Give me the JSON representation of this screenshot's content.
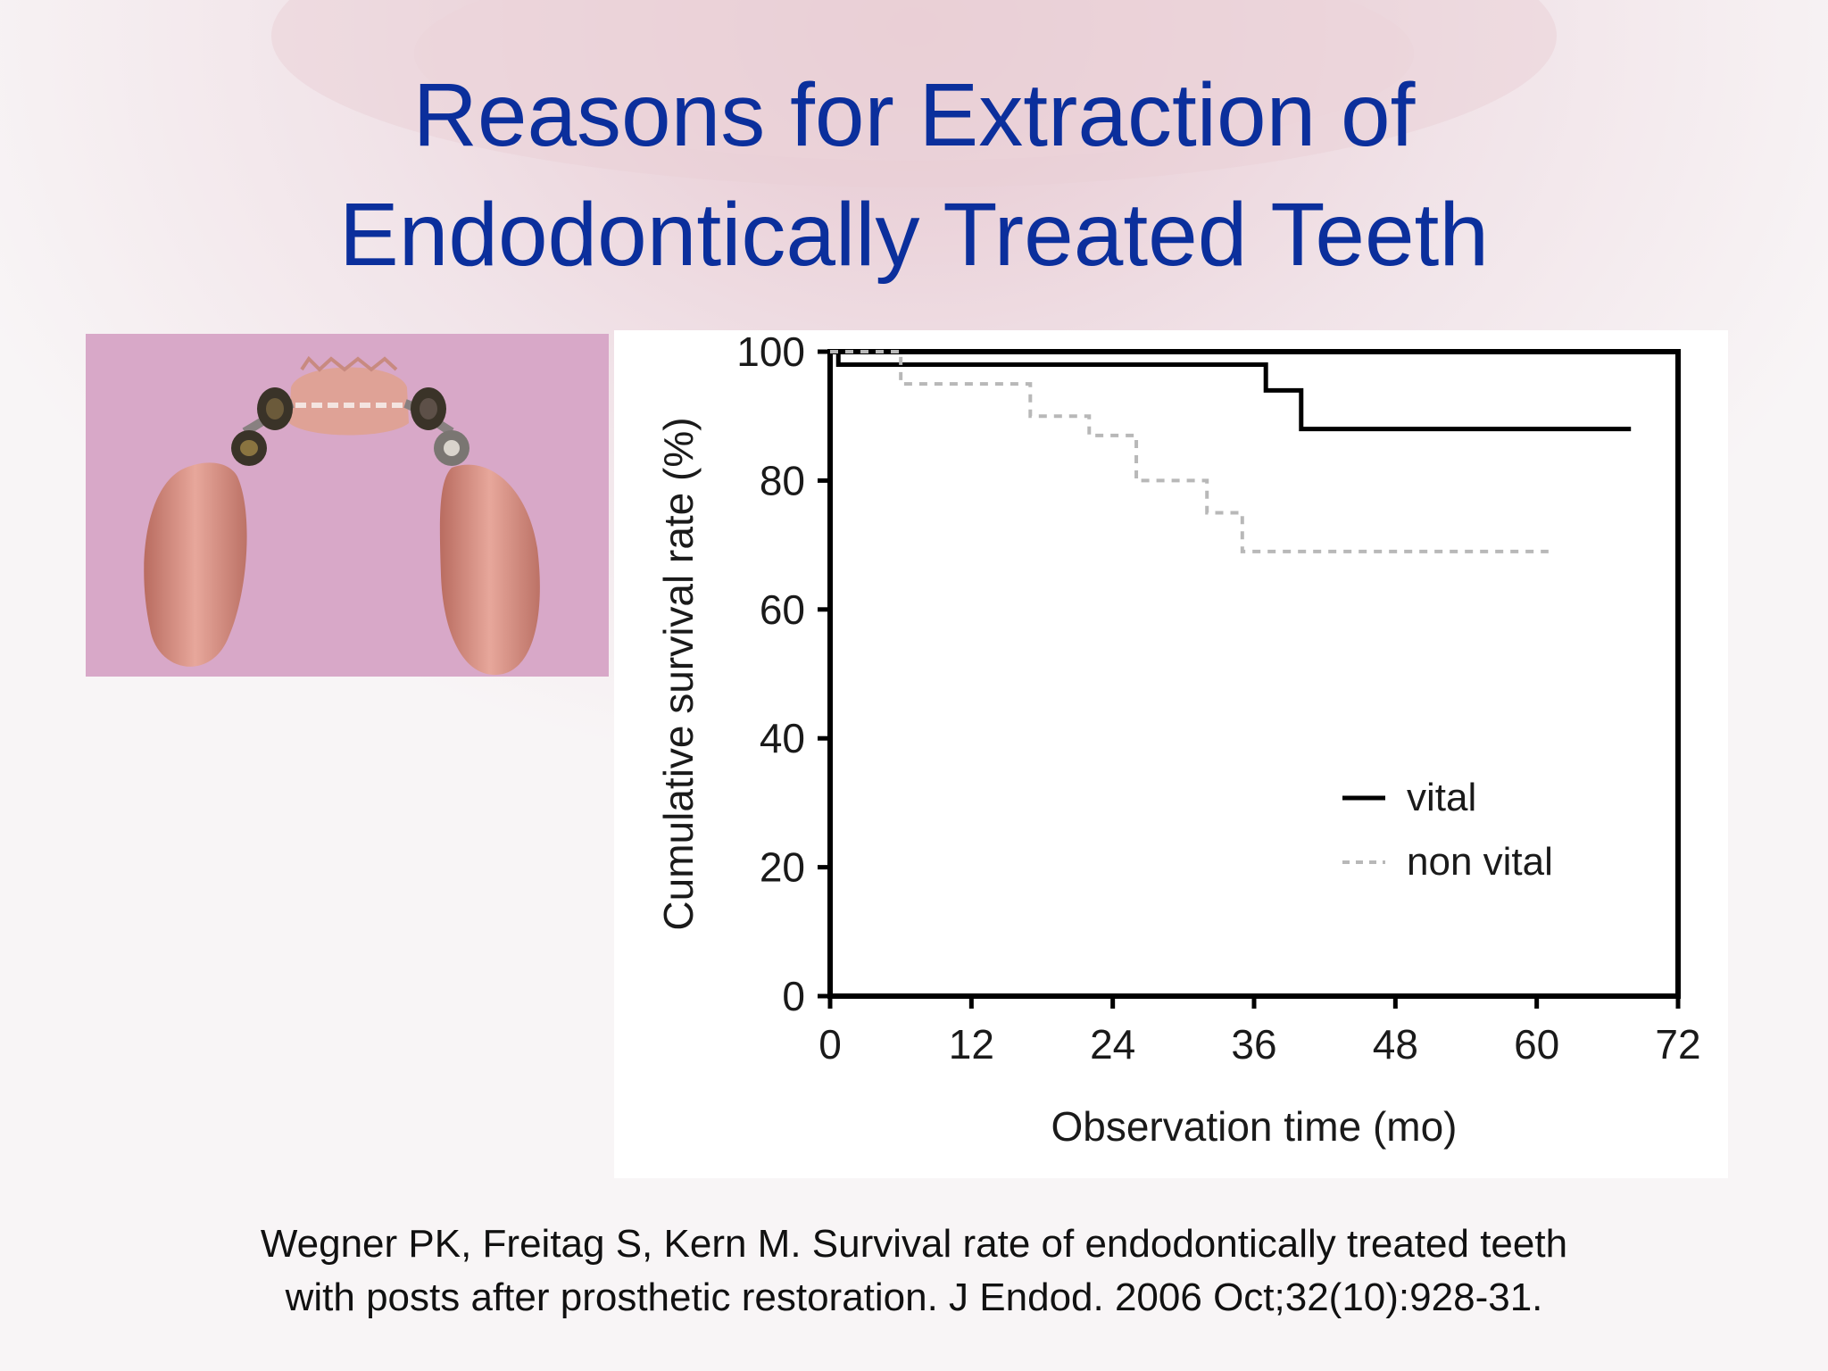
{
  "slide": {
    "title_line1": "Reasons for Extraction of",
    "title_line2": "Endodontically Treated Teeth",
    "citation_line1": "Wegner PK, Freitag S, Kern M. Survival rate of endodontically treated teeth",
    "citation_line2": "with posts after prosthetic restoration. J Endod. 2006 Oct;32(10):928-31."
  },
  "colors": {
    "title": "#0b2f9c",
    "photo_background": "#d8a8c8",
    "vital": "#000000",
    "non_vital": "#b8b8b8"
  },
  "chart_data": {
    "type": "line",
    "subtype": "step",
    "title": "",
    "xlabel": "Observation time (mo)",
    "ylabel": "Cumulative survival rate (%)",
    "xlim": [
      0,
      72
    ],
    "ylim": [
      0,
      100
    ],
    "xticks": [
      0,
      12,
      24,
      36,
      48,
      60,
      72
    ],
    "yticks": [
      0,
      20,
      40,
      60,
      80,
      100
    ],
    "grid": false,
    "legend_position": "lower-right",
    "series": [
      {
        "name": "vital",
        "style": "solid",
        "x": [
          0,
          0.7,
          37,
          40,
          68
        ],
        "y": [
          100,
          98,
          94,
          88,
          88
        ]
      },
      {
        "name": "non vital",
        "style": "dashed",
        "x": [
          0,
          6,
          17,
          22,
          26,
          32,
          35,
          61
        ],
        "y": [
          100,
          95,
          90,
          87,
          80,
          75,
          69,
          69
        ]
      }
    ]
  }
}
